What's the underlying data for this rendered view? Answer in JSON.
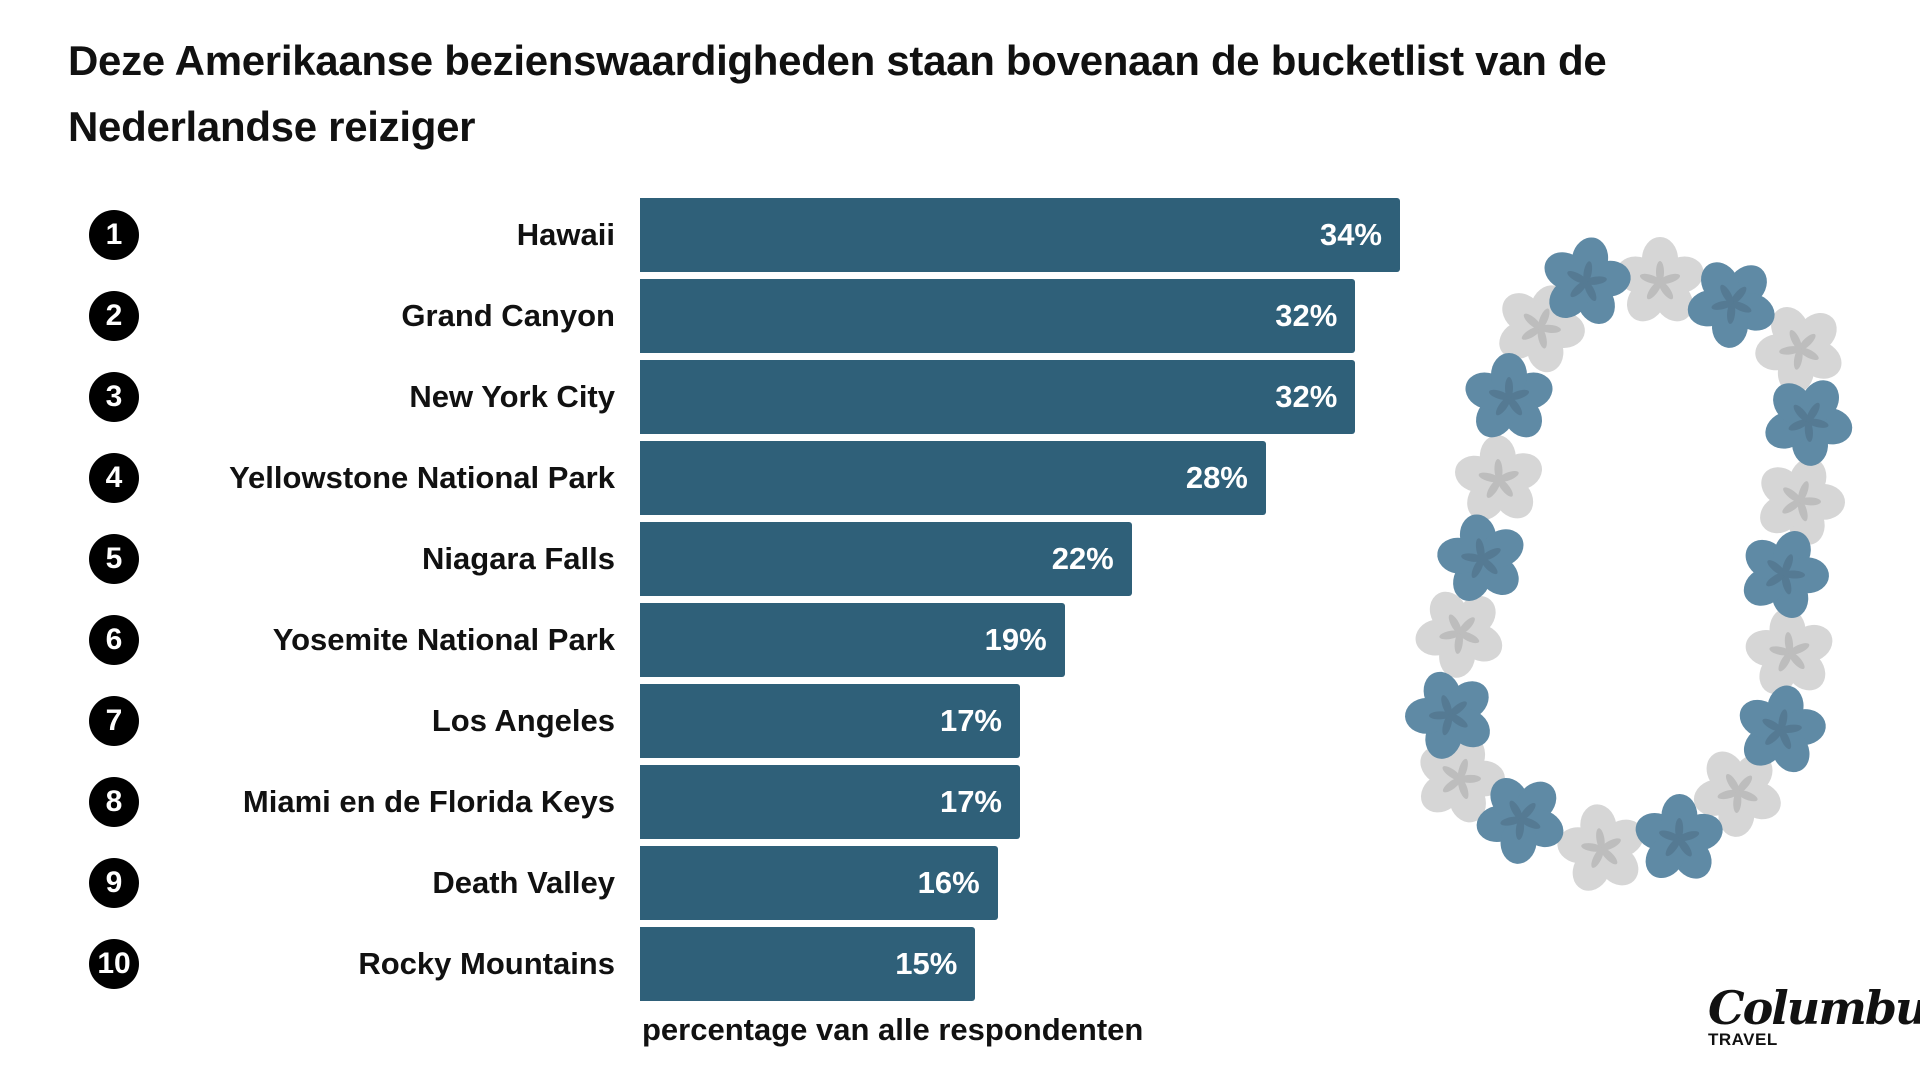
{
  "chart_data": {
    "type": "bar",
    "orientation": "horizontal",
    "title": "Deze Amerikaanse bezienswaardigheden staan bovenaan de bucketlist van de Nederlandse reiziger",
    "xlabel": "percentage van alle respondenten",
    "ylabel": "",
    "xlim": [
      0,
      34
    ],
    "grid": false,
    "ranks": [
      "1",
      "2",
      "3",
      "4",
      "5",
      "6",
      "7",
      "8",
      "9",
      "10"
    ],
    "categories": [
      "Hawaii",
      "Grand Canyon",
      "New York City",
      "Yellowstone National Park",
      "Niagara Falls",
      "Yosemite National Park",
      "Los Angeles",
      "Miami en de Florida Keys",
      "Death Valley",
      "Rocky Mountains"
    ],
    "values": [
      34,
      32,
      32,
      28,
      22,
      19,
      17,
      17,
      16,
      15
    ],
    "value_labels": [
      "34%",
      "32%",
      "32%",
      "28%",
      "22%",
      "19%",
      "17%",
      "17%",
      "16%",
      "15%"
    ],
    "bar_color": "#2f6079"
  },
  "decoration": {
    "blue": "#5f8aa5",
    "gray": "#d6d6d6"
  },
  "logo": {
    "name": "Columbus",
    "sub": "TRAVEL"
  }
}
